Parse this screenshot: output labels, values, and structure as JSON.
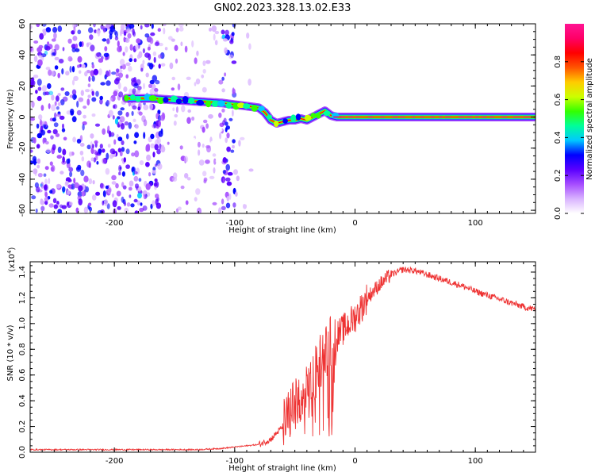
{
  "chart_data": [
    {
      "type": "heatmap",
      "title": "GN02.2023.328.13.02.E33",
      "xlabel": "Height of straight line (km)",
      "ylabel": "Frequency (Hz)",
      "xlim": [
        -270,
        150
      ],
      "ylim": [
        -62,
        60
      ],
      "xticks": [
        -200,
        -100,
        0,
        100
      ],
      "xtick_labels": [
        "-200",
        "-100",
        "0",
        "100"
      ],
      "yticks": [
        -60,
        -40,
        -20,
        0,
        20,
        40,
        60
      ],
      "ytick_labels": [
        "-60",
        "-40",
        "-20",
        "0",
        "20",
        "40",
        "60"
      ],
      "colorbar": {
        "label": "Normalized spectral amplitude",
        "range": [
          0,
          1
        ],
        "ticks": [
          0.0,
          0.2,
          0.4,
          0.6,
          0.8
        ],
        "tick_labels": [
          "0.0",
          "0.2",
          "0.4",
          "0.6",
          "0.8"
        ],
        "colors": [
          "#ffffff",
          "#d9b3ff",
          "#a64dff",
          "#5a00ff",
          "#0000ff",
          "#00c8ff",
          "#00ff99",
          "#33ff00",
          "#ccff00",
          "#ffcc00",
          "#ff5500",
          "#ff0000",
          "#ff0066",
          "#ff1493"
        ]
      },
      "ridge": {
        "x": [
          -190,
          -170,
          -150,
          -130,
          -110,
          -100,
          -90,
          -80,
          -75,
          -70,
          -65,
          -60,
          -55,
          -50,
          -45,
          -40,
          -35,
          -30,
          -25,
          -20,
          -15,
          0,
          50,
          100,
          150
        ],
        "y": [
          12,
          12,
          11,
          10,
          9,
          8,
          7,
          6,
          3,
          -2,
          -4,
          -3,
          -2,
          -2,
          -1,
          -2,
          0,
          2,
          4,
          1,
          0,
          0,
          0,
          0,
          0
        ]
      },
      "noise_regions": [
        {
          "x_range": [
            -270,
            -160
          ],
          "density": "high"
        },
        {
          "x_range": [
            -160,
            -110
          ],
          "density": "medium"
        },
        {
          "x_range": [
            -110,
            -100
          ],
          "density": "high"
        },
        {
          "x_range": [
            -100,
            -85
          ],
          "density": "low"
        }
      ]
    },
    {
      "type": "line",
      "xlabel": "Height of straight line (km)",
      "ylabel": "SNR (10 * v/v)",
      "y_scale_label": "(x10",
      "y_scale_exp": "4",
      "y_scale_close": ")",
      "xlim": [
        -270,
        150
      ],
      "ylim": [
        0,
        1.48
      ],
      "xticks": [
        -200,
        -100,
        0,
        100
      ],
      "xtick_labels": [
        "-200",
        "-100",
        "0",
        "100"
      ],
      "yticks": [
        0.0,
        0.2,
        0.4,
        0.6,
        0.8,
        1.0,
        1.2,
        1.4
      ],
      "ytick_labels": [
        "0.0",
        "0.2",
        "0.4",
        "0.6",
        "0.8",
        "1.0",
        "1.2",
        "1.4"
      ],
      "color": "#ee3333",
      "series": [
        {
          "x": [
            -270,
            -250,
            -230,
            -210,
            -190,
            -170,
            -150,
            -130,
            -110,
            -100,
            -90,
            -80,
            -70,
            -60,
            -55,
            -50,
            -45,
            -40,
            -35,
            -30,
            -25,
            -20,
            -15,
            -10,
            -5,
            0,
            5,
            10,
            20,
            30,
            40,
            50,
            60,
            70,
            80,
            90,
            100,
            110,
            120,
            130,
            140,
            150
          ],
          "y": [
            0.02,
            0.02,
            0.02,
            0.02,
            0.02,
            0.02,
            0.02,
            0.02,
            0.03,
            0.04,
            0.05,
            0.06,
            0.1,
            0.2,
            0.28,
            0.35,
            0.4,
            0.45,
            0.55,
            0.7,
            0.78,
            0.85,
            0.9,
            0.95,
            1.0,
            1.05,
            1.12,
            1.2,
            1.3,
            1.38,
            1.42,
            1.41,
            1.38,
            1.35,
            1.32,
            1.29,
            1.25,
            1.22,
            1.19,
            1.16,
            1.13,
            1.11
          ]
        }
      ]
    }
  ]
}
